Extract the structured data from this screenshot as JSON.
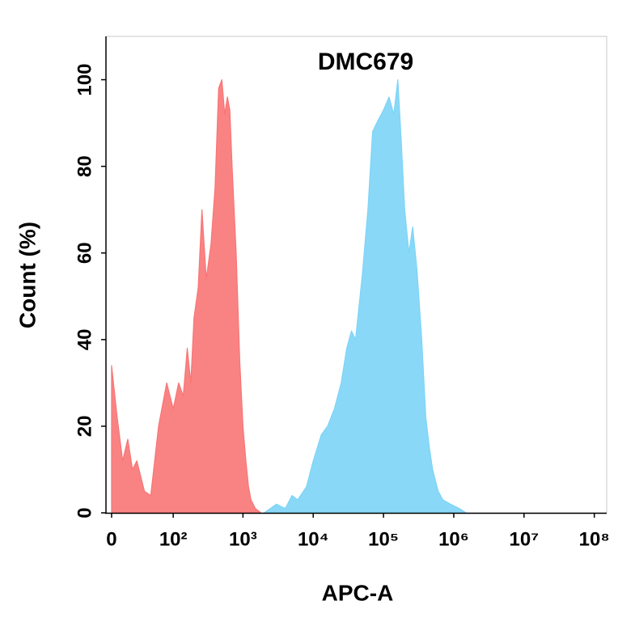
{
  "chart_data": {
    "type": "area",
    "title": "DMC679",
    "x_label": "APC-A",
    "y_label": "Count  (%)",
    "xscale": "biexponential",
    "xlim": [
      -5,
      150000000
    ],
    "ylim": [
      0,
      110
    ],
    "xticks": [
      {
        "value": 0,
        "label": "0"
      },
      {
        "value": 100,
        "label": "10²"
      },
      {
        "value": 1000,
        "label": "10³"
      },
      {
        "value": 10000,
        "label": "10⁴"
      },
      {
        "value": 100000,
        "label": "10⁵"
      },
      {
        "value": 1000000,
        "label": "10⁶"
      },
      {
        "value": 10000000,
        "label": "10⁷"
      },
      {
        "value": 100000000,
        "label": "10⁸"
      }
    ],
    "yticks": [
      0,
      20,
      40,
      60,
      80,
      100
    ],
    "series": [
      {
        "color": "#f87575",
        "x": [
          0,
          5,
          10,
          15,
          20,
          25,
          35,
          45,
          60,
          80,
          100,
          120,
          140,
          160,
          180,
          200,
          230,
          260,
          300,
          350,
          400,
          450,
          500,
          550,
          600,
          650,
          700,
          800,
          900,
          1000,
          1100,
          1200,
          1300,
          1500,
          1800
        ],
        "values": [
          34,
          22,
          12,
          17,
          10,
          12,
          5,
          4,
          20,
          30,
          24,
          30,
          27,
          38,
          30,
          45,
          52,
          70,
          54,
          62,
          75,
          98,
          100,
          92,
          96,
          93,
          80,
          60,
          35,
          20,
          12,
          6,
          3,
          1,
          0
        ]
      },
      {
        "color": "#7dd4f6",
        "x": [
          2000,
          3000,
          4000,
          5000,
          6000,
          8000,
          10000,
          13000,
          16000,
          20000,
          25000,
          30000,
          35000,
          40000,
          50000,
          60000,
          70000,
          80000,
          100000,
          120000,
          140000,
          160000,
          180000,
          200000,
          230000,
          260000,
          300000,
          350000,
          400000,
          450000,
          500000,
          600000,
          700000,
          900000,
          1200000,
          1500000
        ],
        "values": [
          0,
          2,
          1,
          4,
          3,
          6,
          12,
          18,
          20,
          24,
          30,
          38,
          42,
          40,
          55,
          70,
          88,
          90,
          93,
          96,
          92,
          100,
          85,
          70,
          60,
          66,
          56,
          40,
          22,
          15,
          10,
          5,
          3,
          2,
          1,
          0
        ]
      }
    ]
  }
}
